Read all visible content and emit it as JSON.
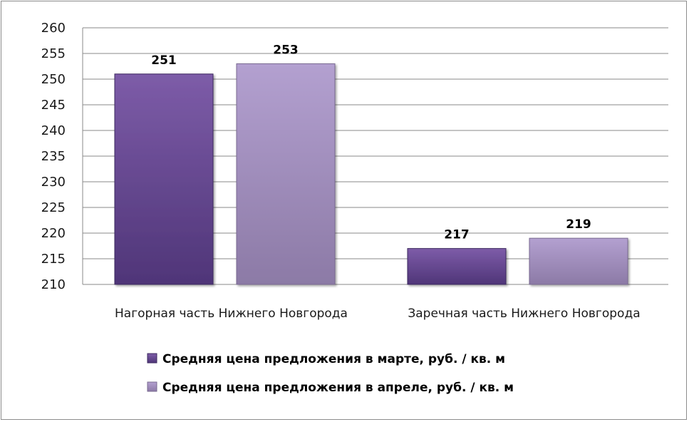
{
  "chart_data": {
    "type": "bar",
    "categories": [
      "Нагорная часть Нижнего Новгорода",
      "Заречная часть Нижнего Новгорода"
    ],
    "series": [
      {
        "name": "Средняя цена предложения в марте, руб. / кв. м",
        "values": [
          251,
          217
        ],
        "data_labels": [
          "251",
          "217"
        ],
        "color": "#6a4a94"
      },
      {
        "name": "Средняя цена предложения в апреле, руб. / кв. м",
        "values": [
          253,
          219
        ],
        "data_labels": [
          "253",
          "219"
        ],
        "color": "#a590c4"
      }
    ],
    "ylim": [
      210,
      260
    ],
    "y_ticks": [
      "210",
      "215",
      "220",
      "225",
      "230",
      "235",
      "240",
      "245",
      "250",
      "255",
      "260"
    ],
    "grid": true,
    "legend_position": "bottom"
  }
}
